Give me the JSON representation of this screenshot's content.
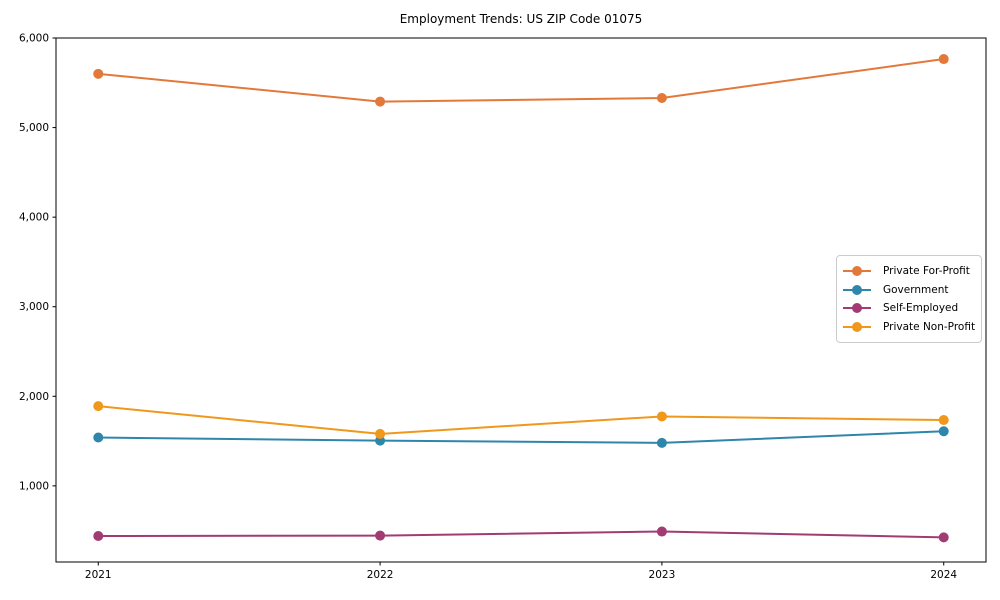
{
  "page": {
    "background": "#ffffff",
    "text_color": "#000000",
    "spine_color": "#000000",
    "legend_border_color": "#cccccc"
  },
  "chart_data": {
    "type": "line",
    "title": "Employment Trends: US ZIP Code 01075",
    "xlabel": "",
    "ylabel": "",
    "x": [
      2021,
      2022,
      2023,
      2024
    ],
    "x_tick_labels": [
      "2021",
      "2022",
      "2023",
      "2024"
    ],
    "ytick_values": [
      1000,
      2000,
      3000,
      4000,
      5000,
      6000
    ],
    "ytick_labels": [
      "1,000",
      "2,000",
      "3,000",
      "4,000",
      "5,000",
      "6,000"
    ],
    "xlim": [
      2020.85,
      2024.15
    ],
    "ylim": [
      150,
      6000
    ],
    "grid": false,
    "legend_position": "right-inside",
    "series": [
      {
        "name": "Private For-Profit",
        "color": "#E2793B",
        "values": [
          5600,
          5290,
          5330,
          5765
        ]
      },
      {
        "name": "Government",
        "color": "#2E86AB",
        "values": [
          1540,
          1505,
          1480,
          1610
        ]
      },
      {
        "name": "Self-Employed",
        "color": "#A23B72",
        "values": [
          440,
          445,
          490,
          425
        ]
      },
      {
        "name": "Private Non-Profit",
        "color": "#F0981B",
        "values": [
          1890,
          1580,
          1775,
          1735
        ]
      }
    ]
  }
}
